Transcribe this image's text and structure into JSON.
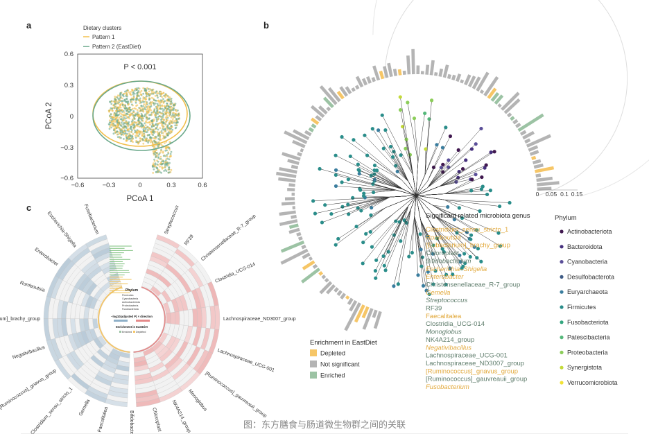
{
  "panels": {
    "a": "a",
    "b": "b",
    "c": "c"
  },
  "panel_a": {
    "legend_title": "Dietary clusters",
    "legend": [
      {
        "label": "Pattern 1",
        "color": "#f2c04e"
      },
      {
        "label": "Pattern 2 (EastDiet)",
        "color": "#6aa88a"
      }
    ],
    "p_value": "P < 0.001",
    "xlabel": "PCoA 1",
    "ylabel": "PCoA 2",
    "xticks": [
      "−0.6",
      "−0.3",
      "0",
      "0.3",
      "0.6"
    ],
    "yticks": [
      "0.6",
      "0.3",
      "0",
      "−0.3",
      "−0.6"
    ]
  },
  "chart_data": {
    "type": "scatter",
    "title": "",
    "xlabel": "PCoA 1",
    "ylabel": "PCoA 2",
    "xlim": [
      -0.6,
      0.6
    ],
    "ylim": [
      -0.6,
      0.6
    ],
    "series": [
      {
        "name": "Pattern 1",
        "color": "#f2c04e"
      },
      {
        "name": "Pattern 2 (EastDiet)",
        "color": "#6aa88a"
      }
    ],
    "annotations": [
      "P < 0.001"
    ],
    "grid": false
  },
  "panel_b": {
    "scale_ticks": [
      "0",
      "0.05",
      "0.1",
      "0.15"
    ],
    "genus_title": "Significant related microbiota genus",
    "genera": [
      {
        "name": "Clostridium_sensu_stricto_1",
        "status": "depleted",
        "italic": false
      },
      {
        "name": "Romboutsia",
        "status": "depleted",
        "italic": true
      },
      {
        "name": "[Eubacterium]_brachy_group",
        "status": "depleted",
        "italic": false
      },
      {
        "name": "Chloroplast",
        "status": "enriched",
        "italic": false
      },
      {
        "name": "Bifidobacterium",
        "status": "enriched",
        "italic": true
      },
      {
        "name": "Escherichia–Shigella",
        "status": "depleted",
        "italic": true
      },
      {
        "name": "Enterobacter",
        "status": "depleted",
        "italic": true
      },
      {
        "name": "Christensenellaceae_R-7_group",
        "status": "enriched",
        "italic": false
      },
      {
        "name": "Gemella",
        "status": "depleted",
        "italic": true
      },
      {
        "name": "Streptococcus",
        "status": "enriched",
        "italic": true
      },
      {
        "name": "RF39",
        "status": "enriched",
        "italic": false
      },
      {
        "name": "Faecalitalea",
        "status": "depleted",
        "italic": false
      },
      {
        "name": "Clostridia_UCG-014",
        "status": "enriched",
        "italic": false
      },
      {
        "name": "Monoglobus",
        "status": "enriched",
        "italic": true
      },
      {
        "name": "NK4A214_group",
        "status": "enriched",
        "italic": false
      },
      {
        "name": "Negativibacillus",
        "status": "depleted",
        "italic": true
      },
      {
        "name": "Lachnospiraceae_UCG-001",
        "status": "enriched",
        "italic": false
      },
      {
        "name": "Lachnospiraceae_ND3007_group",
        "status": "enriched",
        "italic": false
      },
      {
        "name": "[Ruminococcus]_gnavus_group",
        "status": "depleted",
        "italic": false
      },
      {
        "name": "[Ruminococcus]_gauvreauii_group",
        "status": "enriched",
        "italic": false
      },
      {
        "name": "Fusobacterium",
        "status": "depleted",
        "italic": true
      }
    ],
    "genus_colors": {
      "depleted": "#e2a93c",
      "enriched": "#5f7d6c"
    },
    "phylum_title": "Phylum",
    "phyla": [
      {
        "name": "Actinobacteriota",
        "color": "#40184f"
      },
      {
        "name": "Bacteroidota",
        "color": "#46307e"
      },
      {
        "name": "Cyanobacteria",
        "color": "#5a4e98"
      },
      {
        "name": "Desulfobacterota",
        "color": "#3e5b85"
      },
      {
        "name": "Euryarchaeota",
        "color": "#3a7d9e"
      },
      {
        "name": "Firmicutes",
        "color": "#2a8d8a"
      },
      {
        "name": "Fusobacteriota",
        "color": "#33a67f"
      },
      {
        "name": "Patescibacteria",
        "color": "#55b87a"
      },
      {
        "name": "Proteobacteria",
        "color": "#8ccd5a"
      },
      {
        "name": "Synergistota",
        "color": "#c3da3a"
      },
      {
        "name": "Verrucomicrobiota",
        "color": "#f2e234"
      }
    ],
    "enrichment_title": "Enrichment in EastDiet",
    "enrichment": [
      {
        "label": "Depleted",
        "color": "#f6c667"
      },
      {
        "label": "Not significant",
        "color": "#b4b4b4"
      },
      {
        "label": "Enriched",
        "color": "#9cc3a4"
      }
    ]
  },
  "panel_c": {
    "labels": [
      "Streptococcus",
      "RF39",
      "Christensenellaceae_R-7_group",
      "Clostridia_UCG-014",
      "Lachnospiraceae_ND3007_group",
      "Lachnospiraceae_UCG-001",
      "[Ruminococcus]_gauvreauii_group",
      "Monoglobus",
      "NK4A214_group",
      "Chloroplast",
      "Bifidobacterium",
      "Faecalitalea",
      "Gemella",
      "Clostridium_sensu_stricto_1",
      "[Ruminococcus]_gnavus_group",
      "Negativibacillus",
      "[Eubacterium]_brachy_group",
      "Romboutsia",
      "Enterobacter",
      "Escherichia-Shigella",
      "Fusobacterium"
    ],
    "center_phylum_title": "Phylum",
    "center_phyla": [
      "Firmicutes",
      "Cyanobacteria",
      "Actinobacteriota",
      "Proteobacteria",
      "Fusobacteriota"
    ],
    "scale_title": "−log10(adjusted P) × direction",
    "enrichment_title": "Enrichment in EastDiet",
    "enrichment": [
      "Enriched",
      "Depleted"
    ]
  },
  "caption": "图：东方膳食与肠道微生物群之间的关联"
}
